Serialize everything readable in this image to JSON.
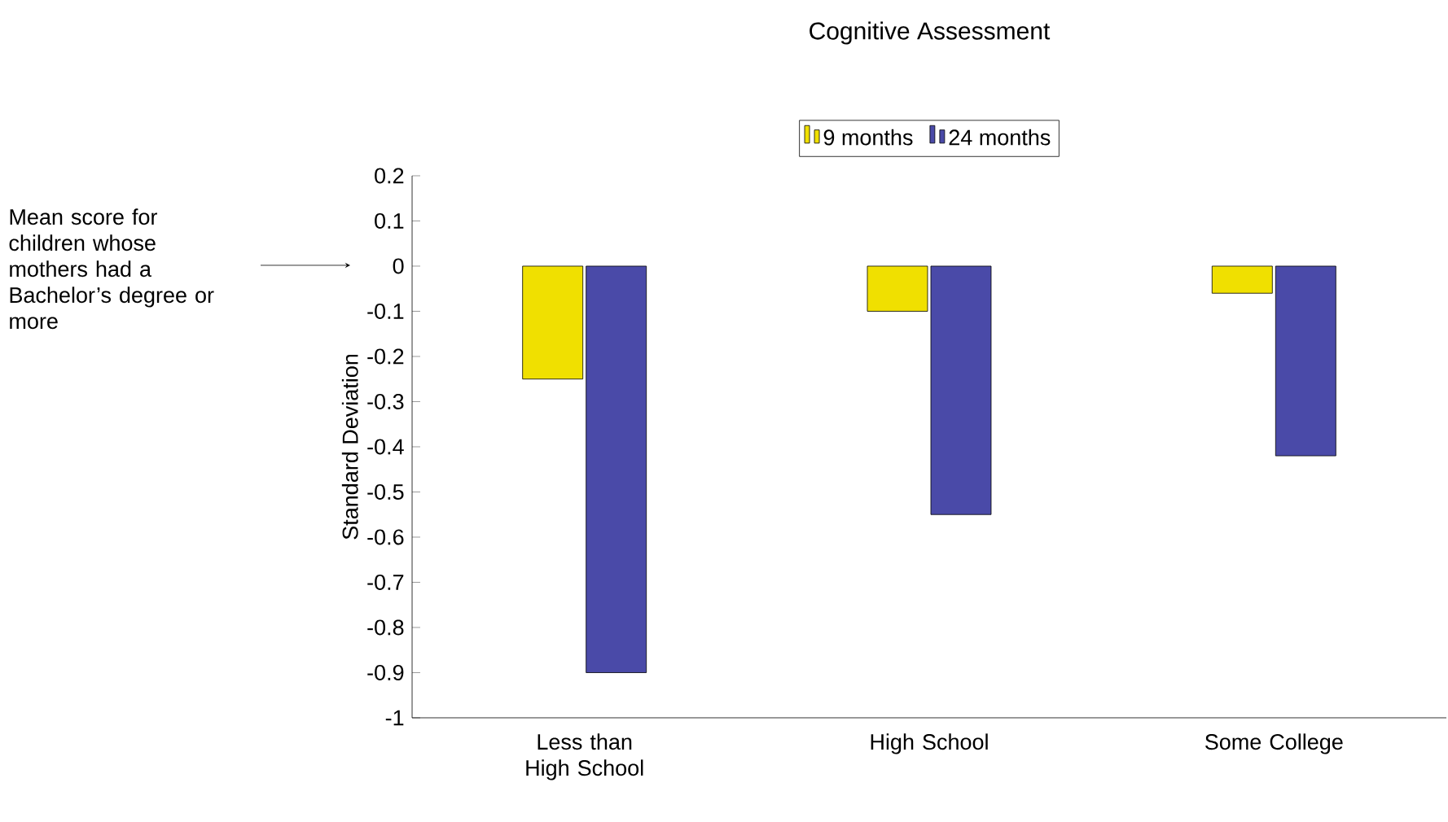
{
  "chart_data": {
    "type": "bar",
    "title": "Cognitive Assessment",
    "ylabel": "Standard Deviation",
    "categories": [
      "Less than High School",
      "High School",
      "Some College"
    ],
    "series": [
      {
        "name": "9 months",
        "color": "#f0e000",
        "values": [
          -0.25,
          -0.1,
          -0.06
        ]
      },
      {
        "name": "24 months",
        "color": "#4a4aa8",
        "values": [
          -0.9,
          -0.55,
          -0.42
        ]
      }
    ],
    "ylim": [
      -1,
      0.2
    ],
    "yticks": [
      -1,
      -0.9,
      -0.8,
      -0.7,
      -0.6,
      -0.5,
      -0.4,
      -0.3,
      -0.2,
      -0.1,
      0,
      0.1,
      0.2
    ],
    "grid": false,
    "legend": "top",
    "annotations": [
      "Mean score for children whose mothers had a Bachelor’s degree or more"
    ]
  }
}
